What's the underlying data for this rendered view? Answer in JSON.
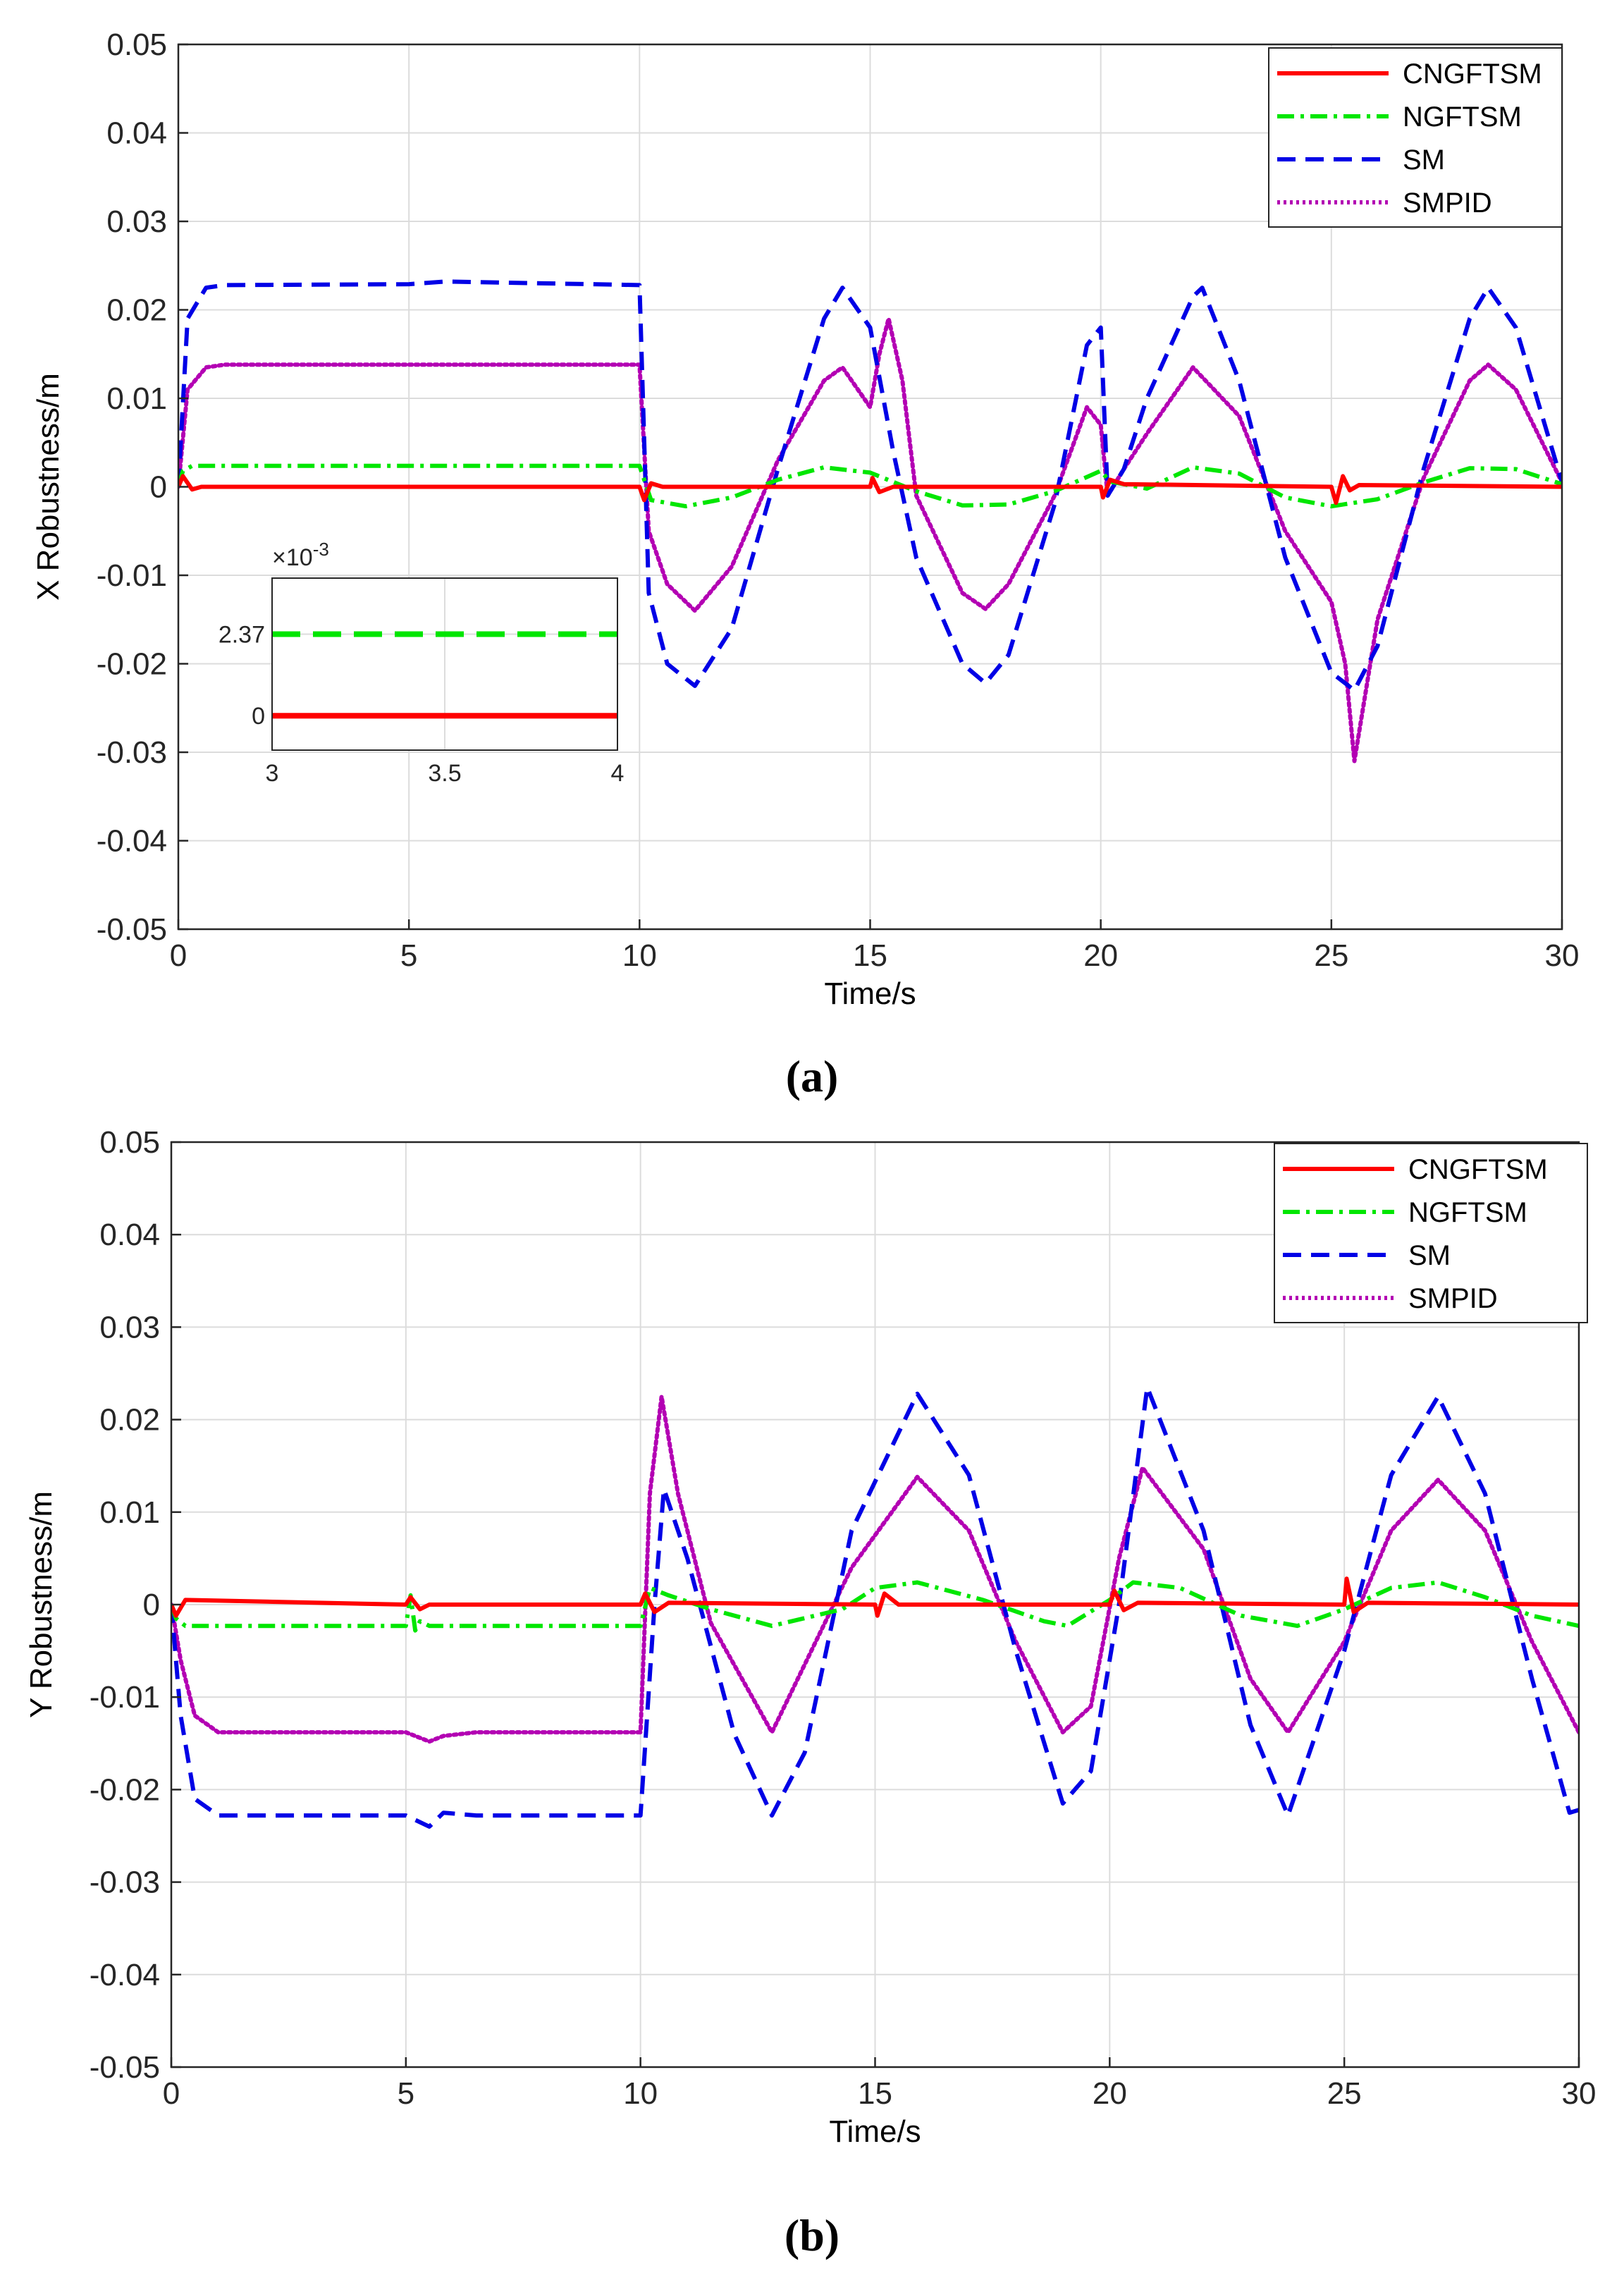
{
  "figure": {
    "panels": [
      "(a)",
      "(b)"
    ]
  },
  "chart_data": [
    {
      "type": "line",
      "panel_label": "a",
      "xlabel": "Time/s",
      "ylabel": "X Robustness/m",
      "xlim": [
        0,
        30
      ],
      "ylim": [
        -0.05,
        0.05
      ],
      "xticks": [
        "0",
        "5",
        "10",
        "15",
        "20",
        "25",
        "30"
      ],
      "yticks": [
        "-0.05",
        "-0.04",
        "-0.03",
        "-0.02",
        "-0.01",
        "0",
        "0.01",
        "0.02",
        "0.03",
        "0.04",
        "0.05"
      ],
      "grid": true,
      "legend_position": "top-right",
      "series": [
        {
          "name": "CNGFTSM",
          "color": "#ff0000",
          "style": "solid",
          "x": [
            0,
            0.1,
            0.3,
            0.5,
            10,
            10.1,
            10.25,
            10.5,
            15,
            15.05,
            15.2,
            15.5,
            20,
            20.05,
            20.2,
            20.5,
            25,
            25.1,
            25.25,
            25.4,
            25.6,
            30
          ],
          "y": [
            0,
            0.0012,
            -0.0003,
            0,
            0,
            -0.0015,
            0.0004,
            0,
            0,
            0.001,
            -0.0006,
            0,
            0,
            -0.0012,
            0.0008,
            0.0003,
            0,
            -0.0018,
            0.0012,
            -0.0004,
            0.0002,
            0
          ]
        },
        {
          "name": "NGFTSM",
          "color": "#00e600",
          "style": "dashdot",
          "x": [
            0,
            0.1,
            0.3,
            10,
            10.25,
            11,
            12,
            13,
            14,
            15,
            16,
            17,
            18,
            19,
            20,
            20.2,
            21,
            22,
            23,
            24,
            25,
            26,
            27,
            28,
            29,
            30
          ],
          "y": [
            0,
            0.0018,
            0.00237,
            0.00237,
            -0.0015,
            -0.0022,
            -0.0012,
            0.0008,
            0.0022,
            0.0016,
            -0.0005,
            -0.0021,
            -0.002,
            -0.0005,
            0.0018,
            0.0006,
            -0.0002,
            0.0022,
            0.0015,
            -0.0012,
            -0.0022,
            -0.0014,
            0.0005,
            0.0021,
            0.002,
            0.0003
          ]
        },
        {
          "name": "SM",
          "color": "#0000e6",
          "style": "dashed",
          "x": [
            0,
            0.2,
            0.6,
            1,
            5,
            5.8,
            10,
            10.2,
            10.6,
            11.2,
            12,
            13,
            14,
            14.4,
            15,
            15.5,
            16,
            17,
            17.5,
            18,
            19,
            19.7,
            20,
            20.15,
            20.5,
            21,
            22,
            22.2,
            23,
            24,
            25,
            25.5,
            26,
            27,
            28,
            28.4,
            29,
            30
          ],
          "y": [
            0,
            0.019,
            0.0225,
            0.0228,
            0.0229,
            0.0232,
            0.0228,
            -0.012,
            -0.02,
            -0.0225,
            -0.016,
            0.002,
            0.019,
            0.0225,
            0.018,
            0.004,
            -0.008,
            -0.02,
            -0.0222,
            -0.019,
            -0.002,
            0.016,
            0.018,
            -0.001,
            0.002,
            0.01,
            0.0215,
            0.0225,
            0.012,
            -0.008,
            -0.021,
            -0.023,
            -0.018,
            0.002,
            0.019,
            0.0225,
            0.018,
            0.0005
          ]
        },
        {
          "name": "SMPID",
          "color": "#b300b3",
          "style": "dotted",
          "x": [
            0,
            0.2,
            0.6,
            1,
            10,
            10.2,
            10.6,
            11.2,
            12,
            13,
            14,
            14.4,
            15,
            15.2,
            15.4,
            15.7,
            16,
            17,
            17.5,
            18,
            19,
            19.7,
            20,
            20.15,
            20.5,
            21,
            22,
            23,
            24,
            25,
            25.3,
            25.5,
            26,
            27,
            28,
            28.4,
            29,
            30
          ],
          "y": [
            0,
            0.011,
            0.0135,
            0.0138,
            0.0138,
            -0.005,
            -0.011,
            -0.014,
            -0.009,
            0.003,
            0.012,
            0.0135,
            0.009,
            0.015,
            0.019,
            0.012,
            -0.001,
            -0.012,
            -0.0138,
            -0.011,
            -0.001,
            0.009,
            0.007,
            -0.001,
            0.002,
            0.006,
            0.0135,
            0.008,
            -0.005,
            -0.013,
            -0.02,
            -0.031,
            -0.015,
            0.001,
            0.012,
            0.0138,
            0.011,
            0.0005
          ]
        }
      ],
      "inset": {
        "xlim": [
          3,
          4
        ],
        "ylim_scaled": [
          -1,
          4
        ],
        "xticks": [
          "3",
          "3.5",
          "4"
        ],
        "yticks": [
          "0",
          "2.37"
        ],
        "exponent_label": "×10",
        "exponent_power": "-3",
        "series": [
          {
            "name": "NGFTSM",
            "color": "#00e600",
            "value": 2.37
          },
          {
            "name": "CNGFTSM",
            "color": "#ff0000",
            "value": 0
          }
        ]
      }
    },
    {
      "type": "line",
      "panel_label": "b",
      "xlabel": "Time/s",
      "ylabel": "Y Robustness/m",
      "xlim": [
        0,
        30
      ],
      "ylim": [
        -0.05,
        0.05
      ],
      "xticks": [
        "0",
        "5",
        "10",
        "15",
        "20",
        "25",
        "30"
      ],
      "yticks": [
        "-0.05",
        "-0.04",
        "-0.03",
        "-0.02",
        "-0.01",
        "0",
        "0.01",
        "0.02",
        "0.03",
        "0.04",
        "0.05"
      ],
      "grid": true,
      "legend_position": "top-right",
      "series": [
        {
          "name": "CNGFTSM",
          "color": "#ff0000",
          "style": "solid",
          "x": [
            0,
            0.1,
            0.3,
            5,
            5.1,
            5.3,
            5.5,
            10,
            10.1,
            10.3,
            10.6,
            15,
            15.05,
            15.2,
            15.5,
            20,
            20.1,
            20.3,
            20.6,
            25,
            25.05,
            25.2,
            25.5,
            30
          ],
          "y": [
            0,
            -0.0012,
            0.0005,
            0,
            0.0008,
            -0.0005,
            0,
            0,
            0.0012,
            -0.0008,
            0.0002,
            0,
            -0.0012,
            0.0012,
            0,
            0,
            0.0015,
            -0.0006,
            0.0002,
            0,
            0.0028,
            -0.0008,
            0.0002,
            0
          ]
        },
        {
          "name": "NGFTSM",
          "color": "#00e600",
          "style": "dashdot",
          "x": [
            0,
            0.1,
            0.3,
            5,
            5.1,
            5.2,
            5.3,
            5.5,
            10,
            10.2,
            10.6,
            11.5,
            12.8,
            14.3,
            15,
            15.9,
            17.3,
            18.6,
            19.1,
            20,
            20.5,
            21.5,
            22.8,
            24,
            25,
            26,
            27,
            28,
            29,
            30
          ],
          "y": [
            0,
            -0.0015,
            -0.0023,
            -0.0023,
            0.001,
            -0.0028,
            -0.0018,
            -0.0023,
            -0.0023,
            0.0018,
            0.001,
            -0.0005,
            -0.0023,
            -0.0005,
            0.0018,
            0.0024,
            0.0005,
            -0.0018,
            -0.0023,
            0.0005,
            0.0024,
            0.0018,
            -0.0012,
            -0.0023,
            -0.0005,
            0.0018,
            0.0024,
            0.0008,
            -0.0012,
            -0.0023
          ]
        },
        {
          "name": "SM",
          "color": "#0000e6",
          "style": "dashed",
          "x": [
            0,
            0.2,
            0.5,
            1,
            5,
            5.5,
            5.8,
            6.5,
            10,
            10.3,
            10.5,
            11,
            12,
            12.8,
            13.5,
            14.5,
            15.9,
            17,
            18,
            19,
            19.6,
            20.2,
            20.8,
            22,
            23,
            23.8,
            25,
            26,
            27,
            28,
            29,
            29.8,
            30
          ],
          "y": [
            0,
            -0.012,
            -0.021,
            -0.0228,
            -0.0228,
            -0.024,
            -0.0225,
            -0.0228,
            -0.0228,
            0.0,
            0.0125,
            0.005,
            -0.014,
            -0.0228,
            -0.016,
            0.008,
            0.0228,
            0.014,
            -0.005,
            -0.0215,
            -0.018,
            0.0,
            0.0235,
            0.008,
            -0.013,
            -0.0228,
            -0.005,
            0.014,
            0.0225,
            0.012,
            -0.008,
            -0.0225,
            -0.0222
          ]
        },
        {
          "name": "SMPID",
          "color": "#b300b3",
          "style": "dotted",
          "x": [
            0,
            0.2,
            0.5,
            1,
            5,
            5.5,
            5.8,
            6.5,
            10,
            10.2,
            10.45,
            10.8,
            11.5,
            12.8,
            14.5,
            15.9,
            17,
            18,
            19,
            19.6,
            20.2,
            20.7,
            22,
            23,
            23.8,
            25,
            26,
            27,
            28,
            29,
            30
          ],
          "y": [
            0,
            -0.006,
            -0.012,
            -0.0138,
            -0.0138,
            -0.0148,
            -0.0142,
            -0.0138,
            -0.0138,
            0.012,
            0.0225,
            0.012,
            -0.002,
            -0.0138,
            0.004,
            0.0138,
            0.008,
            -0.004,
            -0.0138,
            -0.011,
            0.005,
            0.0148,
            0.006,
            -0.008,
            -0.0138,
            -0.004,
            0.008,
            0.0135,
            0.008,
            -0.004,
            -0.0138
          ]
        }
      ]
    }
  ]
}
